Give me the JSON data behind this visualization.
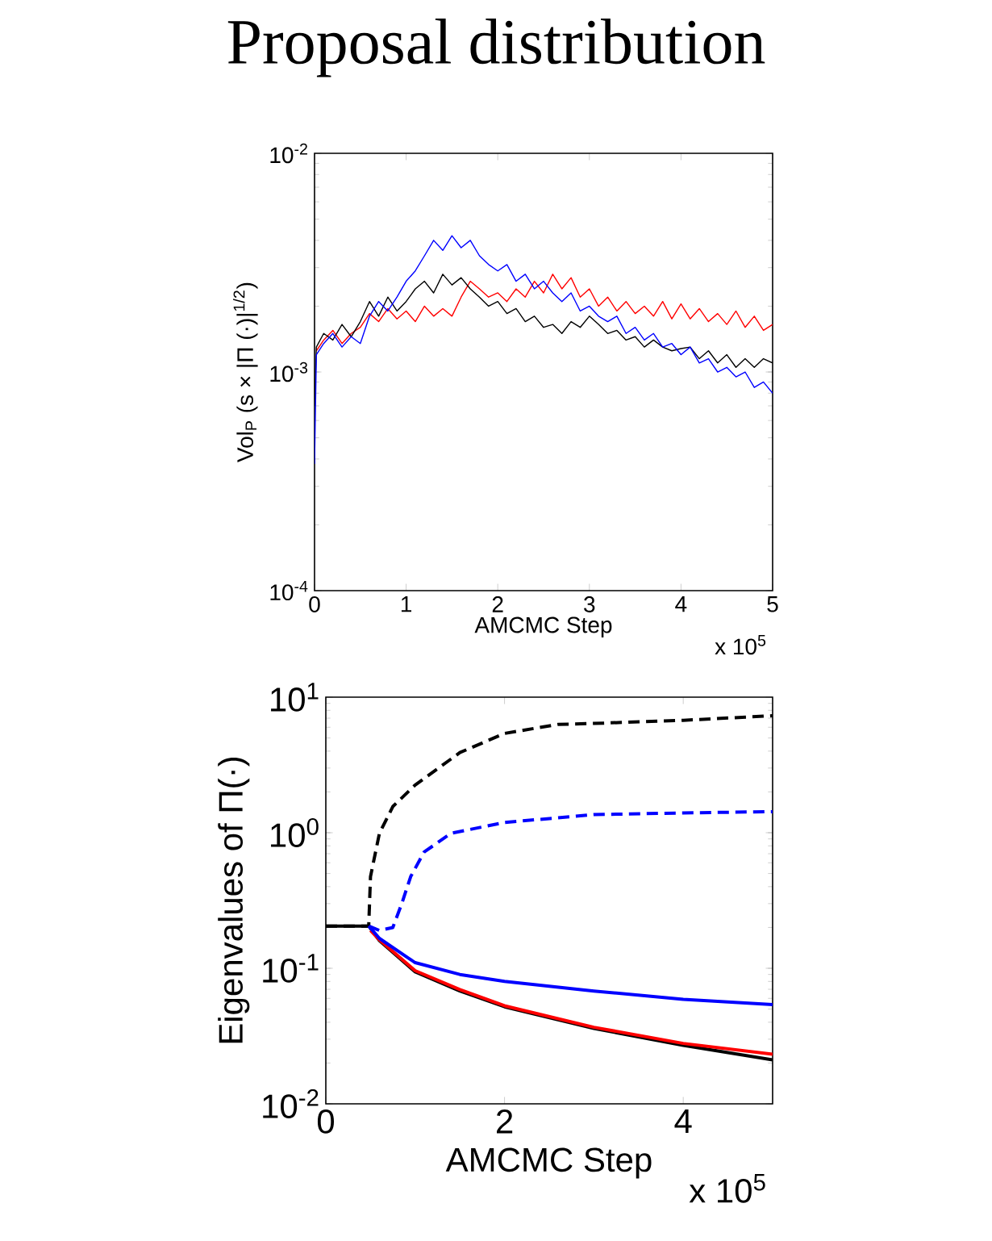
{
  "chart_data": [
    {
      "type": "line",
      "title": "Proposal distribution",
      "xlabel": "AMCMC Step",
      "ylabel": "Vol$_{P}$ (s × |Π (·)|$^{1/2}$)",
      "log": "y",
      "xlim": [
        0,
        5
      ],
      "xticks": [
        0,
        1,
        2,
        3,
        4,
        5
      ],
      "ylim": [
        0.0001,
        0.01
      ],
      "yticks": [
        {
          "value": 0.0001,
          "label": "10$^{-4}$"
        },
        {
          "value": 0.001,
          "label": "10$^{-3}$"
        },
        {
          "value": 0.01,
          "label": "10$^{-2}$"
        }
      ],
      "annotations": [
        "x 10$^{5}$"
      ],
      "x": [
        0,
        0.02,
        0.1,
        0.2,
        0.3,
        0.4,
        0.5,
        0.6,
        0.7,
        0.8,
        0.9,
        1.0,
        1.1,
        1.2,
        1.3,
        1.4,
        1.5,
        1.6,
        1.7,
        1.8,
        1.9,
        2.0,
        2.1,
        2.2,
        2.3,
        2.4,
        2.5,
        2.6,
        2.7,
        2.8,
        2.9,
        3.0,
        3.1,
        3.2,
        3.3,
        3.4,
        3.5,
        3.6,
        3.7,
        3.8,
        3.9,
        4.0,
        4.1,
        4.2,
        4.3,
        4.4,
        4.5,
        4.6,
        4.7,
        4.8,
        4.9,
        5.0
      ],
      "series": [
        {
          "color": "#ff0000",
          "values": [
            null,
            0.00125,
            0.0014,
            0.00155,
            0.00135,
            0.0015,
            0.0016,
            0.00185,
            0.0017,
            0.00195,
            0.00175,
            0.0019,
            0.0017,
            0.002,
            0.0018,
            0.00195,
            0.0018,
            0.0022,
            0.0026,
            0.0024,
            0.0022,
            0.0023,
            0.0021,
            0.0024,
            0.0022,
            0.0026,
            0.0023,
            0.0028,
            0.0024,
            0.0027,
            0.0022,
            0.0024,
            0.002,
            0.0022,
            0.0019,
            0.0021,
            0.00185,
            0.002,
            0.0018,
            0.0021,
            0.00175,
            0.00205,
            0.00175,
            0.00195,
            0.0017,
            0.00185,
            0.00165,
            0.0019,
            0.0016,
            0.0018,
            0.00155,
            0.00165
          ]
        },
        {
          "color": "#000000",
          "values": [
            0.0007,
            0.0013,
            0.0015,
            0.0014,
            0.00165,
            0.00145,
            0.0017,
            0.0021,
            0.0018,
            0.0022,
            0.0019,
            0.0021,
            0.0024,
            0.0026,
            0.0023,
            0.0028,
            0.0025,
            0.0027,
            0.0024,
            0.0022,
            0.002,
            0.0021,
            0.00185,
            0.00195,
            0.0017,
            0.0018,
            0.0016,
            0.00165,
            0.0015,
            0.0017,
            0.0016,
            0.0018,
            0.00165,
            0.0015,
            0.00155,
            0.0014,
            0.00145,
            0.0013,
            0.0014,
            0.0013,
            0.00125,
            0.00128,
            0.0013,
            0.00115,
            0.00125,
            0.0011,
            0.0012,
            0.00105,
            0.00115,
            0.00105,
            0.00115,
            0.0011
          ]
        },
        {
          "color": "#0000ff",
          "values": [
            0.00038,
            0.0012,
            0.00135,
            0.0015,
            0.0013,
            0.00145,
            0.00135,
            0.0018,
            0.0021,
            0.0019,
            0.0022,
            0.0026,
            0.0029,
            0.0034,
            0.004,
            0.0036,
            0.0042,
            0.0037,
            0.004,
            0.0034,
            0.0031,
            0.0029,
            0.0031,
            0.0026,
            0.0028,
            0.0024,
            0.0026,
            0.0023,
            0.0021,
            0.0023,
            0.0019,
            0.002,
            0.0018,
            0.0017,
            0.0018,
            0.0015,
            0.0016,
            0.0014,
            0.0015,
            0.0013,
            0.00135,
            0.0012,
            0.0013,
            0.0011,
            0.00115,
            0.001,
            0.00105,
            0.00095,
            0.001,
            0.00085,
            0.0009,
            0.0008
          ]
        }
      ]
    },
    {
      "type": "line",
      "xlabel": "AMCMC Step",
      "ylabel": "Eigenvalues of Π(·)",
      "log": "y",
      "xlim": [
        0,
        5
      ],
      "xticks": [
        0,
        2,
        4
      ],
      "ylim": [
        0.01,
        10
      ],
      "yticks": [
        {
          "value": 0.01,
          "label": "10$^{-2}$"
        },
        {
          "value": 0.1,
          "label": "10$^{-1}$"
        },
        {
          "value": 1,
          "label": "10$^{0}$"
        },
        {
          "value": 10,
          "label": "10$^{1}$"
        }
      ],
      "annotations": [
        "x 10$^{5}$"
      ],
      "series": [
        {
          "color": "#000000",
          "line_style": "dashed",
          "x": [
            0,
            0.48,
            0.5,
            0.6,
            0.75,
            1.0,
            1.25,
            1.5,
            2.0,
            2.6,
            3.0,
            4.0,
            5.0
          ],
          "values": [
            0.205,
            0.205,
            0.475,
            0.99,
            1.56,
            2.25,
            2.96,
            3.9,
            5.4,
            6.3,
            6.4,
            6.75,
            7.3
          ]
        },
        {
          "color": "#0000ff",
          "line_style": "dashed",
          "x": [
            0.48,
            0.6,
            0.75,
            0.85,
            0.95,
            1.1,
            1.4,
            2.0,
            3.0,
            4.0,
            5.0
          ],
          "values": [
            0.205,
            0.19,
            0.2,
            0.3,
            0.475,
            0.72,
            0.99,
            1.19,
            1.36,
            1.4,
            1.43
          ]
        },
        {
          "color": "#000000",
          "line_style": "solid",
          "x": [
            0,
            0.48,
            0.6,
            1.0,
            1.5,
            2.0,
            3.0,
            4.0,
            5.0
          ],
          "values": [
            0.205,
            0.205,
            0.16,
            0.094,
            0.068,
            0.052,
            0.036,
            0.027,
            0.0211
          ]
        },
        {
          "color": "#ff0000",
          "line_style": "solid",
          "x": [
            0.5,
            0.6,
            1.0,
            1.5,
            2.0,
            3.0,
            4.0,
            5.0
          ],
          "values": [
            0.19,
            0.162,
            0.096,
            0.0697,
            0.0529,
            0.0367,
            0.0279,
            0.0232
          ]
        },
        {
          "color": "#0000ff",
          "line_style": "solid",
          "x": [
            0.48,
            0.6,
            1.0,
            1.5,
            2.0,
            3.0,
            4.0,
            5.0
          ],
          "values": [
            0.205,
            0.166,
            0.11,
            0.09,
            0.08,
            0.068,
            0.059,
            0.054
          ]
        }
      ]
    }
  ]
}
